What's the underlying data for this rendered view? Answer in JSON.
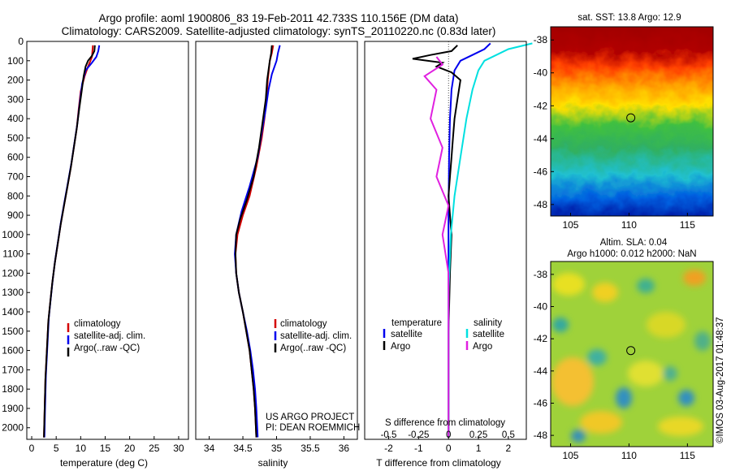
{
  "header": {
    "title_line1": "Argo profile: aoml 1900806_83 19-Feb-2011 42.733S 110.156E (DM data)",
    "title_line2": "Climatology: CARS2009. Satellite-adjusted climatology: synTS_20110220.nc (0.83d later)"
  },
  "colors": {
    "climatology": "#d40000",
    "satellite": "#0000ee",
    "argo": "#000000",
    "salinity_satellite": "#00e0e0",
    "salinity_argo": "#e020e0"
  },
  "chart_data": [
    {
      "type": "line",
      "id": "temperature",
      "xlabel": "temperature (deg C)",
      "ylabel": "",
      "xlim": [
        -1,
        32
      ],
      "ylim": [
        2060,
        0
      ],
      "xticks": [
        0,
        5,
        10,
        15,
        20,
        25,
        30
      ],
      "yticks": [
        0,
        100,
        200,
        300,
        400,
        500,
        600,
        700,
        800,
        900,
        1000,
        1100,
        1200,
        1300,
        1400,
        1500,
        1600,
        1700,
        1800,
        1900,
        2000
      ],
      "legend": {
        "placement": "lower-left",
        "entries": [
          "climatology",
          "satellite-adj. clim.",
          "Argo(..raw -QC)"
        ]
      },
      "series": [
        {
          "name": "climatology",
          "color": "#d40000",
          "x": [
            12.5,
            12.4,
            12.3,
            12.0,
            11.5,
            10.8,
            10.0,
            9.6,
            9.2,
            8.6,
            8.0,
            7.3,
            6.6,
            5.9,
            5.3,
            4.7,
            4.2,
            3.8,
            3.4,
            3.2,
            3.0,
            2.8,
            2.7,
            2.6,
            2.5
          ],
          "y": [
            20,
            50,
            80,
            100,
            130,
            180,
            260,
            350,
            450,
            550,
            650,
            750,
            850,
            950,
            1050,
            1150,
            1250,
            1350,
            1450,
            1550,
            1650,
            1750,
            1850,
            1950,
            2050
          ]
        },
        {
          "name": "satellite-adj. clim.",
          "color": "#0000ee",
          "x": [
            13.8,
            13.6,
            13.2,
            12.3,
            11.0,
            10.3,
            9.8,
            9.3,
            8.7,
            8.1,
            7.4,
            6.7,
            6.0,
            5.4,
            4.8,
            4.3,
            3.9,
            3.5,
            3.3,
            3.1,
            2.9,
            2.8,
            2.7,
            2.6
          ],
          "y": [
            20,
            50,
            80,
            110,
            150,
            220,
            320,
            430,
            530,
            630,
            730,
            830,
            930,
            1030,
            1130,
            1230,
            1330,
            1430,
            1530,
            1630,
            1730,
            1830,
            1930,
            2050
          ]
        },
        {
          "name": "Argo(..raw -QC)",
          "color": "#000000",
          "x": [
            12.9,
            12.8,
            12.3,
            11.5,
            11.0,
            10.6,
            10.2,
            9.7,
            9.2,
            8.6,
            8.0,
            7.3,
            6.6,
            5.9,
            5.3,
            4.7,
            4.2,
            3.8,
            3.4,
            3.2,
            3.0,
            2.8,
            2.7,
            2.6,
            2.5
          ],
          "y": [
            20,
            50,
            75,
            100,
            130,
            180,
            260,
            350,
            450,
            550,
            650,
            750,
            850,
            950,
            1050,
            1150,
            1250,
            1350,
            1450,
            1550,
            1650,
            1750,
            1850,
            1950,
            2050
          ]
        }
      ]
    },
    {
      "type": "line",
      "id": "salinity",
      "xlabel": "salinity",
      "ylabel": "",
      "xlim": [
        33.8,
        36.2
      ],
      "ylim": [
        2060,
        0
      ],
      "xticks": [
        34,
        34.5,
        35,
        35.5,
        36
      ],
      "legend": {
        "placement": "lower-right",
        "entries": [
          "climatology",
          "satellite-adj. clim.",
          "Argo(..raw -QC)"
        ]
      },
      "annotation": [
        "US ARGO PROJECT",
        "PI: DEAN ROEMMICH"
      ],
      "series": [
        {
          "name": "climatology",
          "color": "#d40000",
          "x": [
            34.95,
            34.93,
            34.9,
            34.87,
            34.85,
            34.82,
            34.78,
            34.7,
            34.6,
            34.5,
            34.42,
            34.39,
            34.4,
            34.44,
            34.5,
            34.55,
            34.6,
            34.63,
            34.66,
            34.68,
            34.7
          ],
          "y": [
            20,
            60,
            100,
            200,
            300,
            400,
            500,
            650,
            800,
            900,
            1000,
            1100,
            1200,
            1300,
            1400,
            1500,
            1600,
            1700,
            1800,
            1900,
            2050
          ]
        },
        {
          "name": "satellite-adj. clim.",
          "color": "#0000ee",
          "x": [
            35.05,
            35.02,
            35.0,
            34.93,
            34.88,
            34.84,
            34.79,
            34.72,
            34.6,
            34.48,
            34.4,
            34.38,
            34.4,
            34.44,
            34.5,
            34.56,
            34.61,
            34.65,
            34.68,
            34.7,
            34.72
          ],
          "y": [
            20,
            60,
            100,
            170,
            250,
            350,
            450,
            600,
            750,
            880,
            1000,
            1100,
            1200,
            1300,
            1400,
            1500,
            1600,
            1700,
            1800,
            1900,
            2050
          ]
        },
        {
          "name": "Argo(..raw -QC)",
          "color": "#000000",
          "x": [
            34.93,
            34.92,
            34.9,
            34.86,
            34.84,
            34.8,
            34.74,
            34.66,
            34.56,
            34.46,
            34.4,
            34.39,
            34.4,
            34.44,
            34.5,
            34.55,
            34.6,
            34.63,
            34.66,
            34.68,
            34.7
          ],
          "y": [
            20,
            60,
            100,
            200,
            300,
            400,
            550,
            700,
            820,
            920,
            1000,
            1100,
            1200,
            1300,
            1400,
            1500,
            1600,
            1700,
            1800,
            1900,
            2050
          ]
        }
      ]
    },
    {
      "type": "line",
      "id": "differences",
      "xlabel": "T difference from climatology",
      "xlabel2": "S difference from climatology",
      "ylim": [
        2060,
        0
      ],
      "xlim_T": [
        -2.8,
        2.6
      ],
      "xticks_T": [
        -2,
        -1,
        0,
        1,
        2
      ],
      "xticks_S": [
        -0.5,
        -0.25,
        0,
        0.25,
        0.5
      ],
      "legend": {
        "placement": "lower",
        "temperature_header": "temperature",
        "salinity_header": "salinity",
        "entries": [
          "satellite",
          "Argo",
          "satellite",
          "Argo"
        ]
      },
      "series": [
        {
          "name": "satellite",
          "group": "temperature",
          "color": "#0000ee",
          "x": [
            1.4,
            1.2,
            0.8,
            0.4,
            0.2,
            0.1,
            0.05,
            0.02,
            0.0,
            0.0,
            0.0,
            0.0,
            0.0
          ],
          "y": [
            10,
            40,
            70,
            100,
            150,
            250,
            400,
            600,
            900,
            1200,
            1500,
            1800,
            2050
          ]
        },
        {
          "name": "Argo",
          "group": "temperature",
          "color": "#000000",
          "x": [
            0.3,
            0.1,
            -0.6,
            -1.2,
            -0.2,
            -0.4,
            0.1,
            0.4,
            0.3,
            0.2,
            0.15,
            0.1,
            0.05,
            0.0,
            0.05,
            0.1,
            0.05,
            0.0,
            0.0,
            0.0
          ],
          "y": [
            20,
            50,
            70,
            90,
            110,
            130,
            160,
            200,
            300,
            400,
            500,
            600,
            700,
            800,
            900,
            1000,
            1200,
            1500,
            1800,
            2050
          ]
        },
        {
          "name": "satellite",
          "group": "salinity",
          "color": "#00e0e0",
          "x": [
            0.7,
            0.5,
            0.4,
            0.3,
            0.25,
            0.2,
            0.15,
            0.1,
            0.05,
            0.02,
            0.0,
            0.0,
            0.0
          ],
          "y": [
            10,
            40,
            70,
            100,
            150,
            250,
            400,
            600,
            800,
            1000,
            1300,
            1700,
            2050
          ]
        },
        {
          "name": "Argo",
          "group": "salinity",
          "color": "#e020e0",
          "x": [
            -0.1,
            -0.05,
            -0.2,
            -0.1,
            -0.15,
            -0.05,
            -0.1,
            0.0,
            -0.05,
            0.0,
            0.0,
            0.0,
            0.0
          ],
          "y": [
            80,
            120,
            180,
            250,
            400,
            550,
            700,
            850,
            1000,
            1200,
            1500,
            1800,
            2050
          ]
        }
      ]
    },
    {
      "type": "heatmap",
      "id": "sst_map",
      "title": "sat. SST: 13.8 Argo: 12.9",
      "xlim": [
        103.3,
        117.2
      ],
      "ylim": [
        -48.7,
        -37.2
      ],
      "xticks": [
        105,
        110,
        115
      ],
      "yticks": [
        -38,
        -40,
        -42,
        -44,
        -46,
        -48
      ],
      "marker": {
        "lon": 110.156,
        "lat": -42.733
      }
    },
    {
      "type": "heatmap",
      "id": "sla_map",
      "title_line1": "Altim. SLA: 0.04",
      "title_line2": "Argo h1000: 0.012 h2000: NaN",
      "xlim": [
        103.3,
        117.2
      ],
      "ylim": [
        -48.7,
        -37.2
      ],
      "xticks": [
        105,
        110,
        115
      ],
      "yticks": [
        -38,
        -40,
        -42,
        -44,
        -46,
        -48
      ],
      "marker": {
        "lon": 110.156,
        "lat": -42.733
      }
    }
  ],
  "watermark": "©IMOS 03-Aug-2017 01:48:37"
}
